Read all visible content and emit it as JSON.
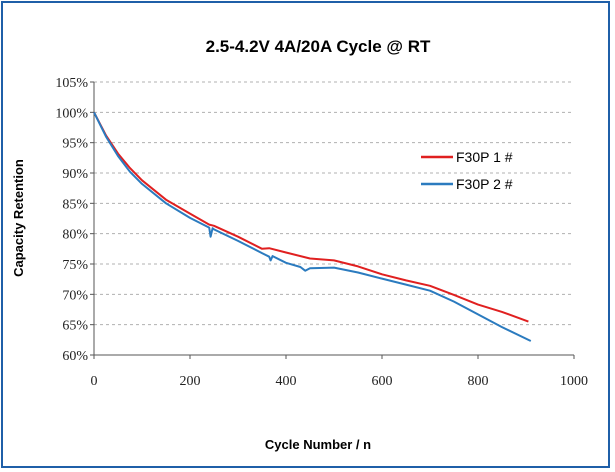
{
  "colors": {
    "frame": "#1f5fa8",
    "series1": "#e02020",
    "series2": "#2b7bbf",
    "grid": "#b0b0b0"
  },
  "chart_data": {
    "type": "line",
    "title": "2.5-4.2V 4A/20A Cycle @ RT",
    "xlabel": "Cycle Number / n",
    "ylabel": "Capacity Retention",
    "xlim": [
      0,
      1000
    ],
    "ylim": [
      60,
      105
    ],
    "xticks": [
      0,
      200,
      400,
      600,
      800,
      1000
    ],
    "yticks": [
      60,
      65,
      70,
      75,
      80,
      85,
      90,
      95,
      100,
      105
    ],
    "ytick_labels": [
      "60%",
      "65%",
      "70%",
      "75%",
      "80%",
      "85%",
      "90%",
      "95%",
      "100%",
      "105%"
    ],
    "grid": "horizontal dashed",
    "legend_position": "right",
    "series": [
      {
        "name": "F30P 1 #",
        "x": [
          0,
          25,
          50,
          75,
          100,
          150,
          200,
          240,
          250,
          300,
          350,
          365,
          400,
          450,
          500,
          550,
          600,
          650,
          700,
          750,
          800,
          850,
          905
        ],
        "y": [
          100,
          96.2,
          93.2,
          90.8,
          88.8,
          85.6,
          83.3,
          81.5,
          81.3,
          79.5,
          77.5,
          77.6,
          76.9,
          75.9,
          75.6,
          74.6,
          73.3,
          72.3,
          71.4,
          69.9,
          68.3,
          67.1,
          65.5
        ]
      },
      {
        "name": "F30P 2 #",
        "x": [
          0,
          25,
          50,
          75,
          100,
          150,
          200,
          240,
          243,
          247,
          250,
          300,
          350,
          365,
          368,
          372,
          400,
          430,
          440,
          450,
          500,
          550,
          600,
          650,
          700,
          750,
          800,
          850,
          910
        ],
        "y": [
          100,
          96,
          92.8,
          90.2,
          88.2,
          85,
          82.6,
          81,
          79.5,
          80.9,
          80.7,
          78.8,
          76.8,
          76.2,
          75.6,
          76.3,
          75.2,
          74.5,
          73.9,
          74.3,
          74.4,
          73.6,
          72.6,
          71.6,
          70.6,
          68.8,
          66.7,
          64.6,
          62.3
        ]
      }
    ]
  }
}
